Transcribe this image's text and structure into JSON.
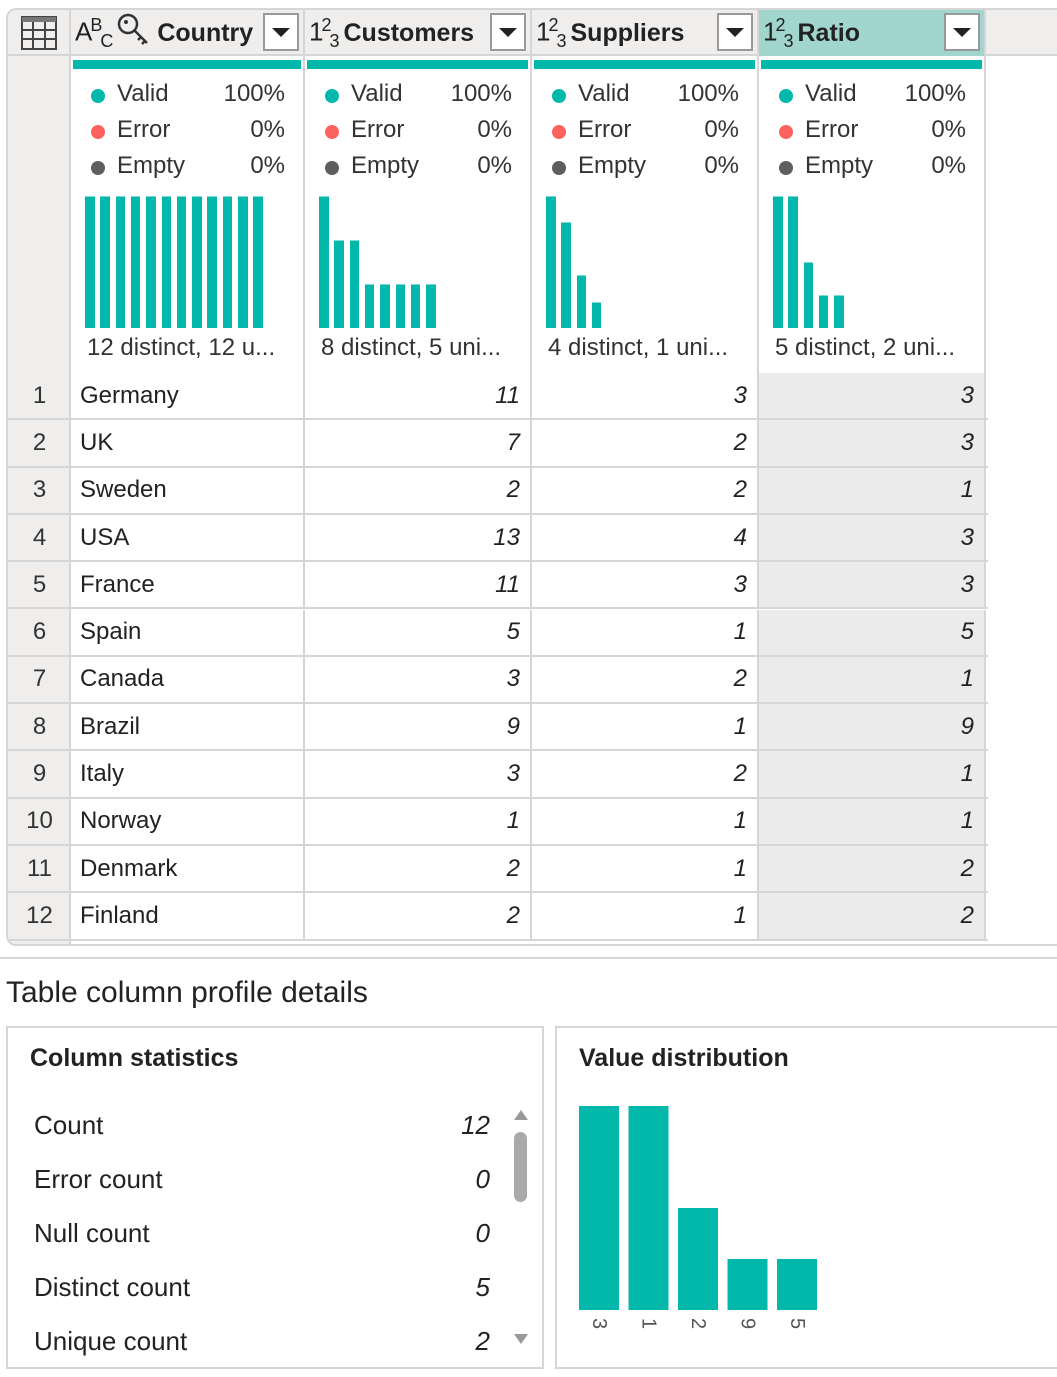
{
  "accent": "#01b8aa",
  "error_color": "#fd625e",
  "empty_color": "#605e5c",
  "columns": [
    {
      "name": "Country",
      "type_icon": "ABC",
      "key_icon": true,
      "valid": "100%",
      "error": "0%",
      "empty": "0%",
      "summary": "12 distinct, 12 u...",
      "dist": [
        1,
        1,
        1,
        1,
        1,
        1,
        1,
        1,
        1,
        1,
        1,
        1
      ]
    },
    {
      "name": "Customers",
      "type_icon": "123",
      "valid": "100%",
      "error": "0%",
      "empty": "0%",
      "summary": "8 distinct, 5 uni...",
      "dist": [
        3,
        2,
        2,
        1,
        1,
        1,
        1,
        1
      ]
    },
    {
      "name": "Suppliers",
      "type_icon": "123",
      "valid": "100%",
      "error": "0%",
      "empty": "0%",
      "summary": "4 distinct, 1 uni...",
      "dist": [
        5,
        4,
        2,
        1
      ]
    },
    {
      "name": "Ratio",
      "type_icon": "123",
      "selected": true,
      "valid": "100%",
      "error": "0%",
      "empty": "0%",
      "summary": "5 distinct, 2 uni...",
      "dist": [
        4,
        4,
        2,
        1,
        1
      ]
    }
  ],
  "labels": {
    "valid": "Valid",
    "error": "Error",
    "empty": "Empty"
  },
  "rows": [
    [
      "1",
      "Germany",
      "11",
      "3",
      "3"
    ],
    [
      "2",
      "UK",
      "7",
      "2",
      "3"
    ],
    [
      "3",
      "Sweden",
      "2",
      "2",
      "1"
    ],
    [
      "4",
      "USA",
      "13",
      "4",
      "3"
    ],
    [
      "5",
      "France",
      "11",
      "3",
      "3"
    ],
    [
      "6",
      "Spain",
      "5",
      "1",
      "5"
    ],
    [
      "7",
      "Canada",
      "3",
      "2",
      "1"
    ],
    [
      "8",
      "Brazil",
      "9",
      "1",
      "9"
    ],
    [
      "9",
      "Italy",
      "3",
      "2",
      "1"
    ],
    [
      "10",
      "Norway",
      "1",
      "1",
      "1"
    ],
    [
      "11",
      "Denmark",
      "2",
      "1",
      "2"
    ],
    [
      "12",
      "Finland",
      "2",
      "1",
      "2"
    ]
  ],
  "profile": {
    "title": "Table column profile details",
    "stats_title": "Column statistics",
    "stats": [
      {
        "label": "Count",
        "value": "12"
      },
      {
        "label": "Error count",
        "value": "0"
      },
      {
        "label": "Null count",
        "value": "0"
      },
      {
        "label": "Distinct count",
        "value": "5"
      },
      {
        "label": "Unique count",
        "value": "2"
      }
    ],
    "dist_title": "Value distribution"
  },
  "chart_data": {
    "type": "bar",
    "title": "Value distribution",
    "categories": [
      "3",
      "1",
      "2",
      "9",
      "5"
    ],
    "values": [
      4,
      4,
      2,
      1,
      1
    ],
    "ylim": [
      0,
      4
    ]
  }
}
